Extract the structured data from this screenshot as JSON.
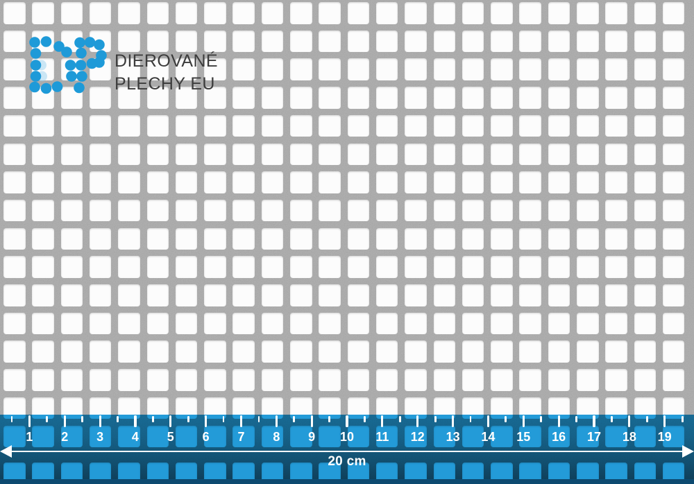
{
  "brand": {
    "logo": "DP",
    "line1": "DIEROVANÉ",
    "line2": "PLECHY EU"
  },
  "ruler": {
    "unit_numbers": [
      "1",
      "2",
      "3",
      "4",
      "5",
      "6",
      "7",
      "8",
      "9",
      "10",
      "11",
      "12",
      "13",
      "14",
      "15",
      "16",
      "17",
      "18",
      "19"
    ],
    "total_label": "20 cm"
  },
  "pattern": {
    "hole_shape": "square",
    "columns": 24,
    "rows": 17
  },
  "colors": {
    "ruler_blue": "#239ddb",
    "logo_blue": "#1e9ad8",
    "metal_gray": "#a9a9a9",
    "hole_white": "#fcfcfc",
    "brand_text": "#3c3c3c",
    "mark_white": "#ffffff"
  }
}
